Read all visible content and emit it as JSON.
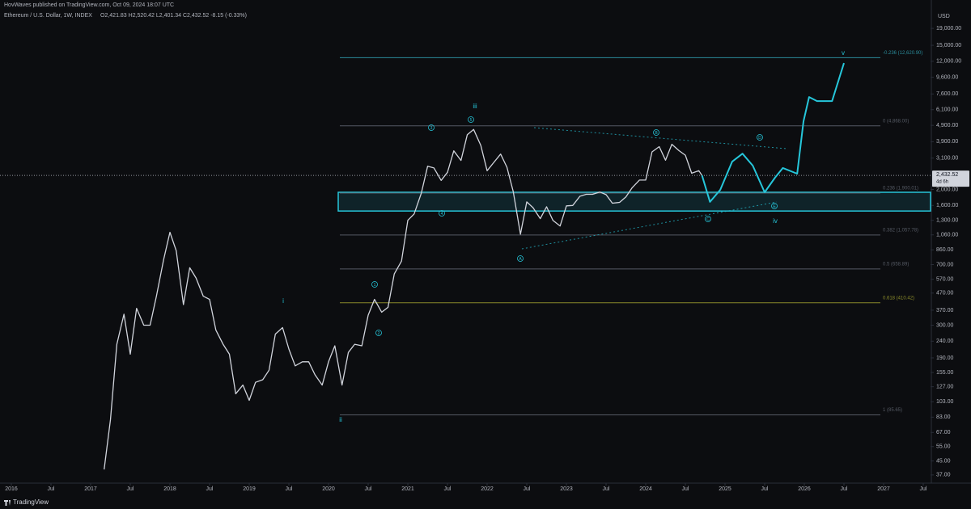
{
  "header": {
    "publisher": "HovWaves published on TradingView.com, Oct 09, 2024 18:07 UTC",
    "symbol": "Ethereum / U.S. Dollar, 1W, INDEX",
    "ohlc": "O2,421.83 H2,520.42 L2,401.34 C2,432.52 -8.15 (-0.33%)"
  },
  "footer": {
    "brand": "TradingView"
  },
  "chart_data": {
    "type": "line",
    "log_scale": true,
    "currency": "USD",
    "xlim": [
      2015.857,
      2027.592
    ],
    "ylim": [
      33,
      28250
    ],
    "xticks": [
      2016,
      {
        "value": 2016.5,
        "label": "Jul"
      },
      2017,
      {
        "value": 2017.5,
        "label": "Jul"
      },
      2018,
      {
        "value": 2018.5,
        "label": "Jul"
      },
      2019,
      {
        "value": 2019.5,
        "label": "Jul"
      },
      2020,
      {
        "value": 2020.5,
        "label": "Jul"
      },
      2021,
      {
        "value": 2021.5,
        "label": "Jul"
      },
      2022,
      {
        "value": 2022.5,
        "label": "Jul"
      },
      2023,
      {
        "value": 2023.5,
        "label": "Jul"
      },
      2024,
      {
        "value": 2024.5,
        "label": "Jul"
      },
      2025,
      {
        "value": 2025.5,
        "label": "Jul"
      },
      2026,
      {
        "value": 2026.5,
        "label": "Jul"
      },
      2027,
      {
        "value": 2027.5,
        "label": "Jul"
      }
    ],
    "yticks": [
      {
        "value": 19000,
        "label": "19,000.00"
      },
      {
        "value": 15000,
        "label": "15,000.00"
      },
      {
        "value": 12000,
        "label": "12,000.00"
      },
      {
        "value": 9600,
        "label": "9,600.00"
      },
      {
        "value": 7600,
        "label": "7,600.00"
      },
      {
        "value": 6100,
        "label": "6,100.00"
      },
      {
        "value": 4900,
        "label": "4,900.00"
      },
      {
        "value": 3900,
        "label": "3,900.00"
      },
      {
        "value": 3100,
        "label": "3,100.00"
      },
      {
        "value": 2000,
        "label": "2,000.00"
      },
      {
        "value": 1600,
        "label": "1,600.00"
      },
      {
        "value": 1300,
        "label": "1,300.00"
      },
      {
        "value": 1060,
        "label": "1,060.00"
      },
      {
        "value": 860,
        "label": "860.00"
      },
      {
        "value": 700,
        "label": "700.00"
      },
      {
        "value": 570,
        "label": "570.00"
      },
      {
        "value": 470,
        "label": "470.00"
      },
      {
        "value": 370,
        "label": "370.00"
      },
      {
        "value": 300,
        "label": "300.00"
      },
      {
        "value": 240,
        "label": "240.00"
      },
      {
        "value": 190,
        "label": "190.00"
      },
      {
        "value": 155,
        "label": "155.00"
      },
      {
        "value": 127,
        "label": "127.00"
      },
      {
        "value": 103,
        "label": "103.00"
      },
      {
        "value": 83,
        "label": "83.00"
      },
      {
        "value": 67,
        "label": "67.00"
      },
      {
        "value": 55,
        "label": "55.00"
      },
      {
        "value": 45,
        "label": "45.00"
      },
      {
        "value": 37,
        "label": "37.00"
      }
    ],
    "series": [
      {
        "name": "ETHUSD",
        "color": "#d1d4dc",
        "x": [
          2017.17,
          2017.25,
          2017.33,
          2017.42,
          2017.5,
          2017.58,
          2017.67,
          2017.75,
          2017.83,
          2017.92,
          2018.0,
          2018.08,
          2018.17,
          2018.25,
          2018.33,
          2018.42,
          2018.5,
          2018.58,
          2018.67,
          2018.75,
          2018.83,
          2018.92,
          2019.0,
          2019.08,
          2019.17,
          2019.25,
          2019.33,
          2019.42,
          2019.5,
          2019.58,
          2019.67,
          2019.75,
          2019.83,
          2019.92,
          2020.0,
          2020.08,
          2020.17,
          2020.25,
          2020.33,
          2020.42,
          2020.5,
          2020.58,
          2020.67,
          2020.75,
          2020.83,
          2020.92,
          2021.0,
          2021.08,
          2021.17,
          2021.25,
          2021.33,
          2021.42,
          2021.5,
          2021.58,
          2021.67,
          2021.75,
          2021.83,
          2021.92,
          2022.0,
          2022.08,
          2022.17,
          2022.25,
          2022.33,
          2022.42,
          2022.5,
          2022.58,
          2022.67,
          2022.75,
          2022.83,
          2022.92,
          2023.0,
          2023.08,
          2023.17,
          2023.25,
          2023.33,
          2023.42,
          2023.5,
          2023.58,
          2023.67,
          2023.75,
          2023.83,
          2023.92,
          2024.0,
          2024.08,
          2024.17,
          2024.25,
          2024.33,
          2024.42,
          2024.5,
          2024.58,
          2024.67,
          2024.71
        ],
        "values": [
          40,
          80,
          230,
          350,
          200,
          380,
          300,
          300,
          450,
          750,
          1100,
          850,
          400,
          670,
          580,
          450,
          430,
          280,
          230,
          200,
          115,
          130,
          105,
          135,
          140,
          160,
          265,
          290,
          215,
          170,
          180,
          180,
          150,
          130,
          180,
          225,
          130,
          205,
          230,
          225,
          345,
          430,
          360,
          385,
          615,
          735,
          1300,
          1420,
          1900,
          2770,
          2700,
          2270,
          2540,
          3430,
          3000,
          4300,
          4630,
          3700,
          2600,
          2900,
          3280,
          2730,
          1940,
          1070,
          1680,
          1550,
          1330,
          1570,
          1300,
          1200,
          1590,
          1600,
          1820,
          1870,
          1870,
          1930,
          1860,
          1650,
          1670,
          1800,
          2050,
          2280,
          2280,
          3380,
          3640,
          3010,
          3760,
          3440,
          3230,
          2510,
          2600,
          2432
        ]
      },
      {
        "name": "Projection",
        "color": "#26c6da",
        "x": [
          2024.71,
          2024.81,
          2024.94,
          2025.09,
          2025.22,
          2025.35,
          2025.5,
          2025.63,
          2025.73,
          2025.91,
          2025.99,
          2026.06,
          2026.16,
          2026.35,
          2026.5
        ],
        "values": [
          2432,
          1680,
          1990,
          2950,
          3300,
          2790,
          1923,
          2355,
          2700,
          2494,
          5190,
          7280,
          6880,
          6880,
          11700
        ]
      }
    ],
    "fib_levels": [
      {
        "value": 12620.9,
        "label": "-0.236 (12,620.90)",
        "color": "#2a8a99"
      },
      {
        "value": 4868.0,
        "label": "0 (4,868.00)",
        "color": "#555a64"
      },
      {
        "value": 1900.01,
        "label": "0.236 (1,900.01)",
        "color": "#555a64"
      },
      {
        "value": 1057.78,
        "label": "0.382 (1,057.78)",
        "color": "#555a64"
      },
      {
        "value": 658.89,
        "label": "0.5 (658.89)",
        "color": "#555a64"
      },
      {
        "value": 410.42,
        "label": "0.618 (410.42)",
        "color": "#8a8a2a"
      },
      {
        "value": 85.65,
        "label": "1 (85.65)",
        "color": "#555a64"
      }
    ],
    "zone": {
      "low": 1480,
      "high": 1923,
      "color": "#26c6da"
    },
    "last_price": {
      "value": 2432.52,
      "label": "2,432.52"
    },
    "countdown": "4d 6h",
    "wave_labels": [
      "iii",
      "i",
      "ii",
      "iv",
      "v"
    ],
    "circled_labels": [
      "1",
      "2",
      "3",
      "4",
      "5",
      "A",
      "B",
      "C",
      "D",
      "E"
    ]
  }
}
